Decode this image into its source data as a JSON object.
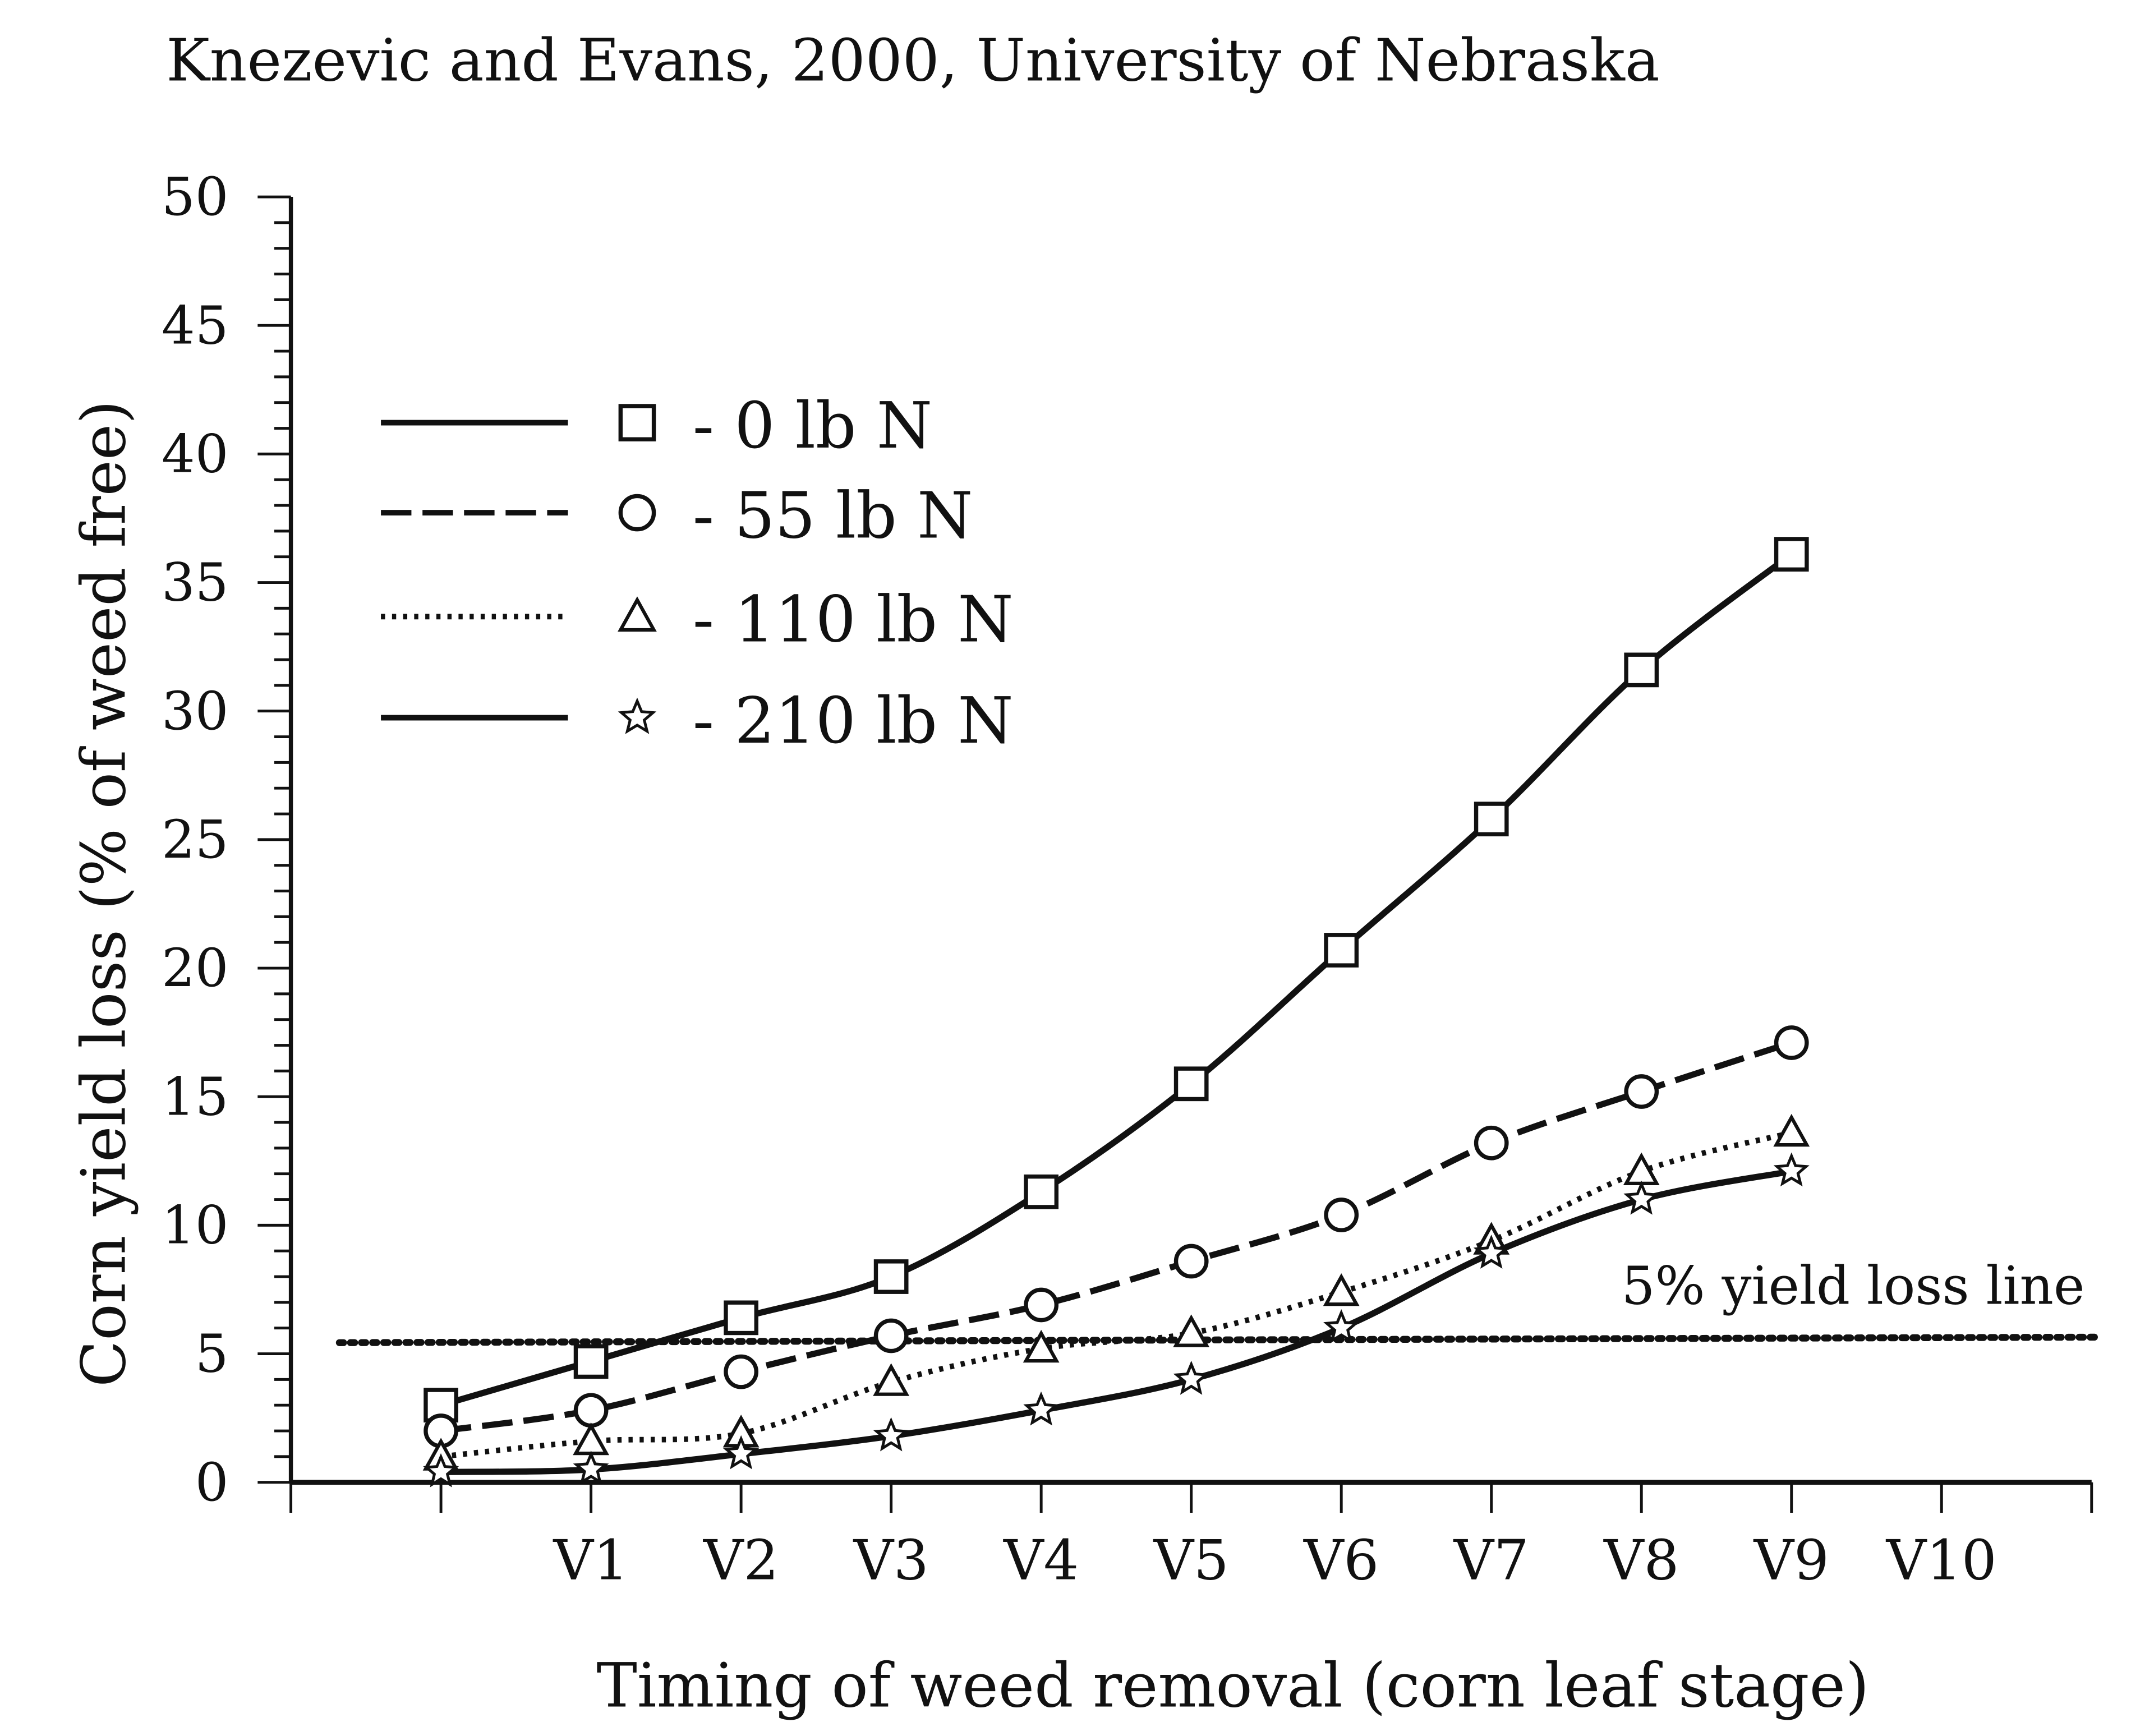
{
  "chart_data": {
    "type": "line",
    "title": "Knezevic and Evans, 2000, University of Nebraska",
    "xlabel": "Timing of weed removal (corn leaf stage)",
    "ylabel": "Corn yield loss (% of weed free)",
    "x_tick_labels": [
      "",
      "",
      "V1",
      "V2",
      "V3",
      "V4",
      "V5",
      "V6",
      "V7",
      "V8",
      "V9",
      "V10",
      ""
    ],
    "y_ticks": [
      0,
      5,
      10,
      15,
      20,
      25,
      30,
      35,
      40,
      45,
      50
    ],
    "ylim": [
      0,
      50
    ],
    "grid": false,
    "legend_position": "top-left",
    "x": [
      "",
      "V1",
      "V2",
      "V3",
      "V4",
      "V5",
      "V6",
      "V7",
      "V8",
      "V9"
    ],
    "series": [
      {
        "name": "- 0 lb N",
        "marker": "square",
        "line": "solid",
        "values": [
          3.0,
          4.7,
          6.4,
          8.0,
          11.3,
          15.5,
          20.7,
          25.8,
          31.6,
          36.1
        ]
      },
      {
        "name": "- 55 lb N",
        "marker": "circle",
        "line": "dashed",
        "values": [
          2.0,
          2.8,
          4.3,
          5.7,
          6.9,
          8.6,
          10.4,
          13.2,
          15.2,
          17.1
        ]
      },
      {
        "name": "- 110 lb N",
        "marker": "triangle",
        "line": "dotted",
        "values": [
          1.0,
          1.6,
          1.9,
          3.9,
          5.2,
          5.8,
          7.4,
          9.4,
          12.1,
          13.6
        ]
      },
      {
        "name": "- 210 lb N",
        "marker": "star",
        "line": "solid",
        "values": [
          0.4,
          0.5,
          1.1,
          1.8,
          2.8,
          4.0,
          6.0,
          8.9,
          11.0,
          12.1
        ]
      }
    ],
    "reference_line": {
      "value": 5,
      "label": "5% yield loss line",
      "style": "dotted"
    }
  }
}
